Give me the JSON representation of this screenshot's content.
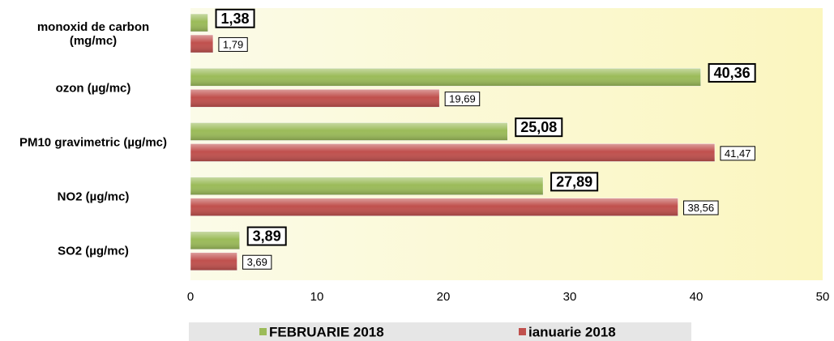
{
  "chart_data": {
    "type": "bar",
    "orientation": "horizontal",
    "categories": [
      "monoxid de carbon (mg/mc)",
      "ozon (µg/mc)",
      "PM10 gravimetric (µg/mc)",
      "NO2 (µg/mc)",
      "SO2 (µg/mc)"
    ],
    "series": [
      {
        "name": "FEBRUARIE 2018",
        "color": "#9bbb59",
        "values": [
          1.38,
          40.36,
          25.08,
          27.89,
          3.89
        ],
        "value_labels": [
          "1,38",
          "40,36",
          "25,08",
          "27,89",
          "3,89"
        ]
      },
      {
        "name": "ianuarie 2018",
        "color": "#c0504d",
        "values": [
          1.79,
          19.69,
          41.47,
          38.56,
          3.69
        ],
        "value_labels": [
          "1,79",
          "19,69",
          "41,47",
          "38,56",
          "3,69"
        ]
      }
    ],
    "xlim": [
      0,
      50
    ],
    "xticks": [
      0,
      10,
      20,
      30,
      40,
      50
    ],
    "legend": "bottom"
  }
}
